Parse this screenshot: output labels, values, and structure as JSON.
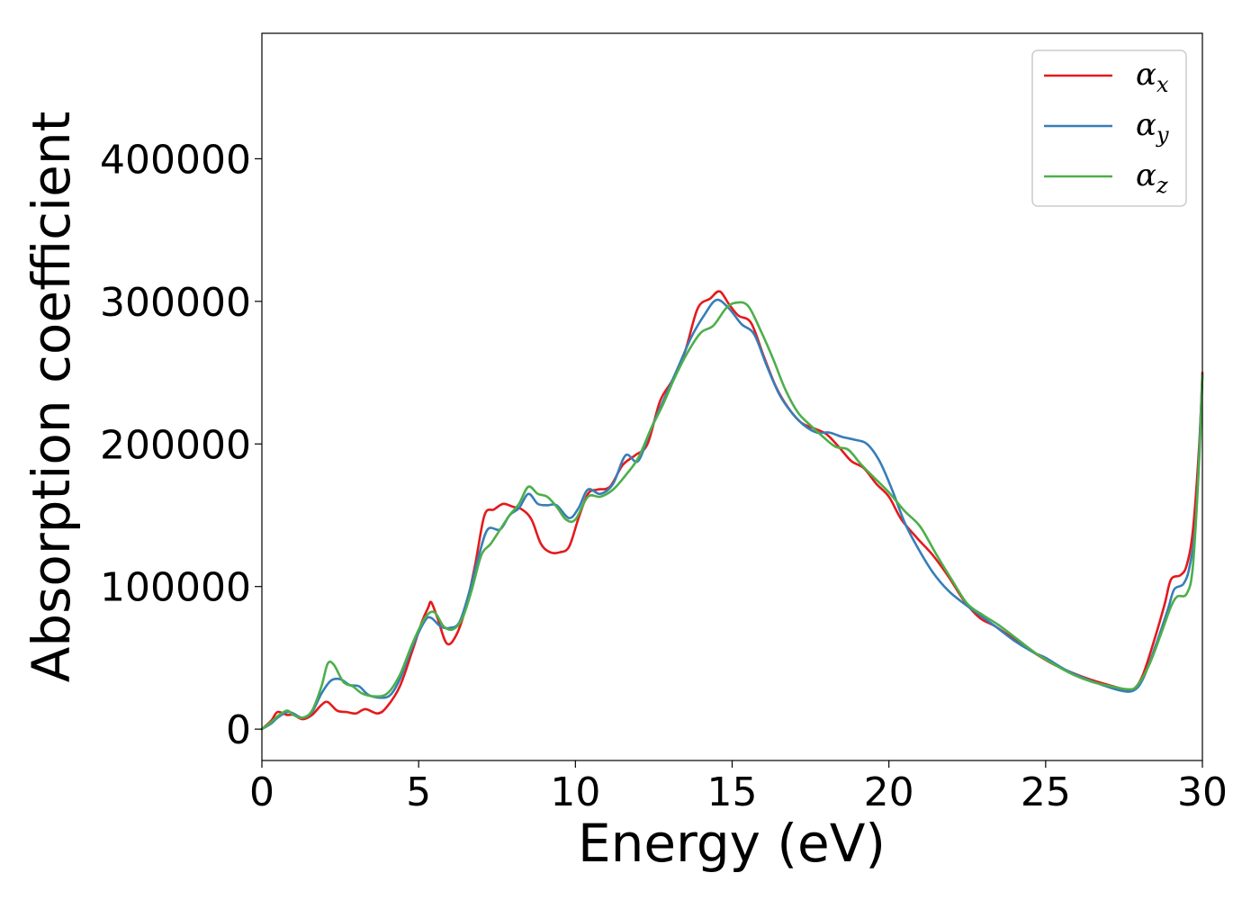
{
  "chart_data": {
    "type": "line",
    "title": "",
    "xlabel": "Energy (eV)",
    "ylabel": "Absorption coefficient",
    "xlim": [
      0,
      30
    ],
    "ylim": [
      -22000,
      488000
    ],
    "xticks": [
      "0",
      "5",
      "10",
      "15",
      "20",
      "25",
      "30"
    ],
    "yticks": [
      "0",
      "100000",
      "200000",
      "300000",
      "400000"
    ],
    "grid": false,
    "legend_position": "top-right",
    "series": [
      {
        "name": "α",
        "subscript": "x",
        "color": "#e41a1c",
        "points": [
          [
            0,
            0
          ],
          [
            0.3,
            6000
          ],
          [
            0.5,
            12000
          ],
          [
            0.8,
            10000
          ],
          [
            1.0,
            10000
          ],
          [
            1.3,
            7000
          ],
          [
            1.6,
            10000
          ],
          [
            1.9,
            17000
          ],
          [
            2.1,
            19000
          ],
          [
            2.4,
            13000
          ],
          [
            2.7,
            12000
          ],
          [
            3.0,
            11000
          ],
          [
            3.3,
            14000
          ],
          [
            3.7,
            11000
          ],
          [
            4.0,
            16000
          ],
          [
            4.4,
            30000
          ],
          [
            4.8,
            55000
          ],
          [
            5.1,
            75000
          ],
          [
            5.3,
            85000
          ],
          [
            5.4,
            89000
          ],
          [
            5.6,
            78000
          ],
          [
            5.9,
            60000
          ],
          [
            6.2,
            66000
          ],
          [
            6.5,
            85000
          ],
          [
            6.8,
            115000
          ],
          [
            7.1,
            150000
          ],
          [
            7.4,
            154000
          ],
          [
            7.7,
            158000
          ],
          [
            8.0,
            156000
          ],
          [
            8.3,
            154000
          ],
          [
            8.6,
            147000
          ],
          [
            8.9,
            130000
          ],
          [
            9.2,
            124000
          ],
          [
            9.5,
            124000
          ],
          [
            9.8,
            128000
          ],
          [
            10.1,
            148000
          ],
          [
            10.4,
            165000
          ],
          [
            10.7,
            168000
          ],
          [
            11.1,
            170000
          ],
          [
            11.5,
            185000
          ],
          [
            11.9,
            192000
          ],
          [
            12.3,
            200000
          ],
          [
            12.7,
            230000
          ],
          [
            13.1,
            245000
          ],
          [
            13.5,
            265000
          ],
          [
            13.9,
            295000
          ],
          [
            14.3,
            302000
          ],
          [
            14.6,
            307000
          ],
          [
            14.9,
            298000
          ],
          [
            15.2,
            290000
          ],
          [
            15.6,
            285000
          ],
          [
            16.0,
            262000
          ],
          [
            16.4,
            240000
          ],
          [
            16.8,
            225000
          ],
          [
            17.2,
            215000
          ],
          [
            17.6,
            211000
          ],
          [
            18.0,
            207000
          ],
          [
            18.4,
            198000
          ],
          [
            18.8,
            188000
          ],
          [
            19.2,
            183000
          ],
          [
            19.6,
            172000
          ],
          [
            20.0,
            163000
          ],
          [
            20.4,
            147000
          ],
          [
            20.9,
            134000
          ],
          [
            21.4,
            122000
          ],
          [
            21.9,
            107000
          ],
          [
            22.4,
            90000
          ],
          [
            22.9,
            78000
          ],
          [
            23.4,
            72000
          ],
          [
            24.0,
            63000
          ],
          [
            24.6,
            54000
          ],
          [
            25.2,
            46000
          ],
          [
            25.8,
            40000
          ],
          [
            26.4,
            35000
          ],
          [
            27.0,
            31000
          ],
          [
            27.5,
            28000
          ],
          [
            27.8,
            28000
          ],
          [
            28.1,
            38000
          ],
          [
            28.5,
            65000
          ],
          [
            28.8,
            88000
          ],
          [
            29.0,
            105000
          ],
          [
            29.3,
            108000
          ],
          [
            29.5,
            115000
          ],
          [
            29.7,
            140000
          ],
          [
            29.9,
            200000
          ],
          [
            30.0,
            250000
          ]
        ]
      },
      {
        "name": "α",
        "subscript": "y",
        "color": "#377eb8",
        "points": [
          [
            0,
            0
          ],
          [
            0.3,
            4000
          ],
          [
            0.5,
            8000
          ],
          [
            0.8,
            12000
          ],
          [
            1.0,
            11000
          ],
          [
            1.3,
            8000
          ],
          [
            1.6,
            12000
          ],
          [
            1.9,
            25000
          ],
          [
            2.2,
            34000
          ],
          [
            2.5,
            35000
          ],
          [
            2.8,
            31000
          ],
          [
            3.1,
            30000
          ],
          [
            3.4,
            24000
          ],
          [
            3.8,
            22000
          ],
          [
            4.1,
            24000
          ],
          [
            4.4,
            35000
          ],
          [
            4.8,
            58000
          ],
          [
            5.2,
            76000
          ],
          [
            5.4,
            78000
          ],
          [
            5.7,
            72000
          ],
          [
            6.0,
            71000
          ],
          [
            6.3,
            75000
          ],
          [
            6.6,
            95000
          ],
          [
            6.9,
            120000
          ],
          [
            7.2,
            140000
          ],
          [
            7.6,
            140000
          ],
          [
            7.9,
            150000
          ],
          [
            8.2,
            155000
          ],
          [
            8.5,
            165000
          ],
          [
            8.8,
            158000
          ],
          [
            9.1,
            157000
          ],
          [
            9.4,
            157000
          ],
          [
            9.8,
            148000
          ],
          [
            10.1,
            155000
          ],
          [
            10.4,
            168000
          ],
          [
            10.8,
            165000
          ],
          [
            11.2,
            172000
          ],
          [
            11.6,
            192000
          ],
          [
            12.0,
            188000
          ],
          [
            12.4,
            210000
          ],
          [
            12.9,
            235000
          ],
          [
            13.3,
            255000
          ],
          [
            13.7,
            275000
          ],
          [
            14.1,
            290000
          ],
          [
            14.5,
            301000
          ],
          [
            14.9,
            295000
          ],
          [
            15.3,
            284000
          ],
          [
            15.7,
            277000
          ],
          [
            16.1,
            255000
          ],
          [
            16.5,
            235000
          ],
          [
            16.9,
            222000
          ],
          [
            17.3,
            213000
          ],
          [
            17.7,
            208000
          ],
          [
            18.1,
            208000
          ],
          [
            18.5,
            205000
          ],
          [
            18.9,
            203000
          ],
          [
            19.3,
            200000
          ],
          [
            19.7,
            188000
          ],
          [
            20.1,
            168000
          ],
          [
            20.5,
            145000
          ],
          [
            20.9,
            128000
          ],
          [
            21.4,
            110000
          ],
          [
            21.9,
            97000
          ],
          [
            22.4,
            88000
          ],
          [
            22.9,
            80000
          ],
          [
            23.4,
            72000
          ],
          [
            24.0,
            62000
          ],
          [
            24.6,
            54000
          ],
          [
            25.0,
            50000
          ],
          [
            25.6,
            42000
          ],
          [
            26.2,
            36000
          ],
          [
            26.8,
            31000
          ],
          [
            27.4,
            27000
          ],
          [
            27.8,
            27000
          ],
          [
            28.1,
            35000
          ],
          [
            28.5,
            58000
          ],
          [
            28.9,
            84000
          ],
          [
            29.1,
            98000
          ],
          [
            29.4,
            102000
          ],
          [
            29.6,
            115000
          ],
          [
            29.8,
            150000
          ],
          [
            30.0,
            248000
          ]
        ]
      },
      {
        "name": "α",
        "subscript": "z",
        "color": "#4daf4a",
        "points": [
          [
            0,
            0
          ],
          [
            0.3,
            5000
          ],
          [
            0.5,
            9000
          ],
          [
            0.8,
            13000
          ],
          [
            1.0,
            10000
          ],
          [
            1.3,
            8000
          ],
          [
            1.6,
            13000
          ],
          [
            1.9,
            30000
          ],
          [
            2.1,
            46000
          ],
          [
            2.3,
            45000
          ],
          [
            2.6,
            33000
          ],
          [
            2.9,
            30000
          ],
          [
            3.2,
            25000
          ],
          [
            3.6,
            23000
          ],
          [
            4.0,
            25000
          ],
          [
            4.4,
            38000
          ],
          [
            4.8,
            60000
          ],
          [
            5.2,
            78000
          ],
          [
            5.5,
            82000
          ],
          [
            5.8,
            72000
          ],
          [
            6.1,
            70000
          ],
          [
            6.4,
            78000
          ],
          [
            6.7,
            98000
          ],
          [
            7.0,
            122000
          ],
          [
            7.3,
            130000
          ],
          [
            7.6,
            140000
          ],
          [
            7.9,
            150000
          ],
          [
            8.2,
            158000
          ],
          [
            8.5,
            170000
          ],
          [
            8.8,
            165000
          ],
          [
            9.1,
            163000
          ],
          [
            9.4,
            156000
          ],
          [
            9.7,
            147000
          ],
          [
            10.0,
            147000
          ],
          [
            10.4,
            163000
          ],
          [
            10.8,
            163000
          ],
          [
            11.2,
            168000
          ],
          [
            11.6,
            178000
          ],
          [
            12.0,
            190000
          ],
          [
            12.4,
            210000
          ],
          [
            12.8,
            228000
          ],
          [
            13.2,
            248000
          ],
          [
            13.6,
            265000
          ],
          [
            14.0,
            278000
          ],
          [
            14.4,
            283000
          ],
          [
            14.8,
            295000
          ],
          [
            15.1,
            299000
          ],
          [
            15.5,
            297000
          ],
          [
            15.9,
            280000
          ],
          [
            16.3,
            260000
          ],
          [
            16.7,
            238000
          ],
          [
            17.1,
            222000
          ],
          [
            17.5,
            213000
          ],
          [
            17.9,
            205000
          ],
          [
            18.3,
            198000
          ],
          [
            18.7,
            196000
          ],
          [
            19.1,
            186000
          ],
          [
            19.5,
            177000
          ],
          [
            20.0,
            166000
          ],
          [
            20.5,
            153000
          ],
          [
            21.0,
            142000
          ],
          [
            21.5,
            123000
          ],
          [
            22.0,
            105000
          ],
          [
            22.5,
            88000
          ],
          [
            23.0,
            80000
          ],
          [
            23.5,
            73000
          ],
          [
            24.1,
            63000
          ],
          [
            24.7,
            53000
          ],
          [
            25.3,
            45000
          ],
          [
            25.9,
            38000
          ],
          [
            26.5,
            33000
          ],
          [
            27.1,
            30000
          ],
          [
            27.6,
            28000
          ],
          [
            27.9,
            30000
          ],
          [
            28.3,
            45000
          ],
          [
            28.7,
            68000
          ],
          [
            29.0,
            86000
          ],
          [
            29.2,
            93000
          ],
          [
            29.5,
            95000
          ],
          [
            29.7,
            115000
          ],
          [
            29.9,
            190000
          ],
          [
            30.0,
            248000
          ]
        ]
      }
    ]
  }
}
